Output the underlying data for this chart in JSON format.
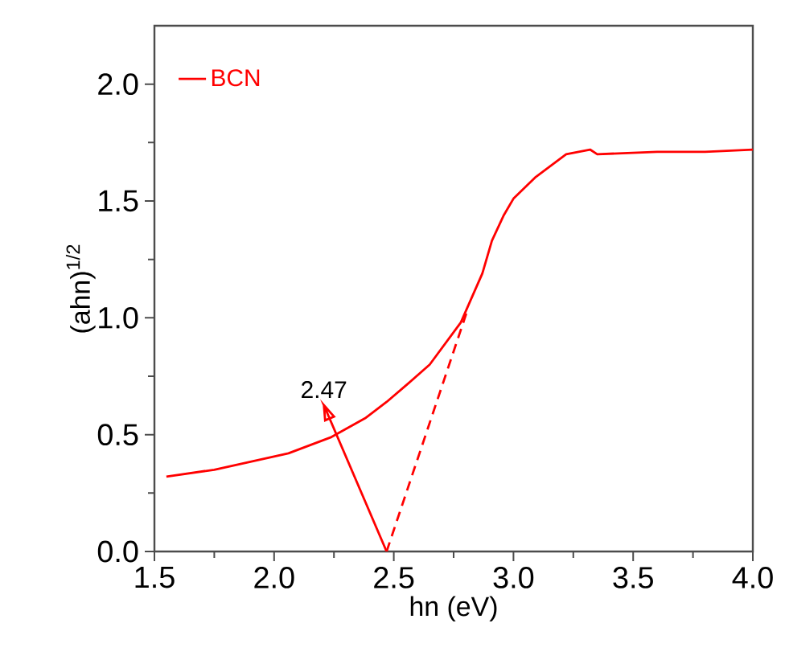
{
  "chart_data": {
    "type": "line",
    "xlabel": "hn (eV)",
    "ylabel": "(ahn)$^{1/2}$",
    "xlim": [
      1.5,
      4.0
    ],
    "ylim": [
      0,
      2.25
    ],
    "xticks": [
      1.5,
      {
        "value": 2,
        "label": "2.0"
      },
      2.5,
      {
        "value": 3,
        "label": "3.0"
      },
      3.5,
      {
        "value": 4,
        "label": "4.0"
      }
    ],
    "yticks": [
      {
        "value": 0,
        "label": "0.0"
      },
      0.5,
      {
        "value": 1,
        "label": "1.0"
      },
      1.5,
      {
        "value": 2,
        "label": "2.0"
      }
    ],
    "legend": "top left",
    "series": [
      {
        "name": "BCN",
        "color": "#ff0000",
        "line_style": "solid",
        "x": [
          1.55,
          1.75,
          2.06,
          2.24,
          2.38,
          2.47,
          2.55,
          2.65,
          2.78,
          2.87,
          2.91,
          2.96,
          3.0,
          3.09,
          3.22,
          3.32,
          3.35,
          3.6,
          3.8,
          4.0
        ],
        "values": [
          0.32,
          0.35,
          0.42,
          0.49,
          0.57,
          0.64,
          0.71,
          0.8,
          0.98,
          1.19,
          1.33,
          1.44,
          1.51,
          1.6,
          1.7,
          1.72,
          1.7,
          1.71,
          1.71,
          1.72
        ]
      },
      {
        "color": "#ff0000",
        "line_style": "dashed",
        "x": [
          2.47,
          2.81
        ],
        "values": [
          0,
          1.04
        ]
      }
    ],
    "annotations": [
      {
        "text": "2.47",
        "x": 2.47,
        "y": 0
      }
    ]
  }
}
